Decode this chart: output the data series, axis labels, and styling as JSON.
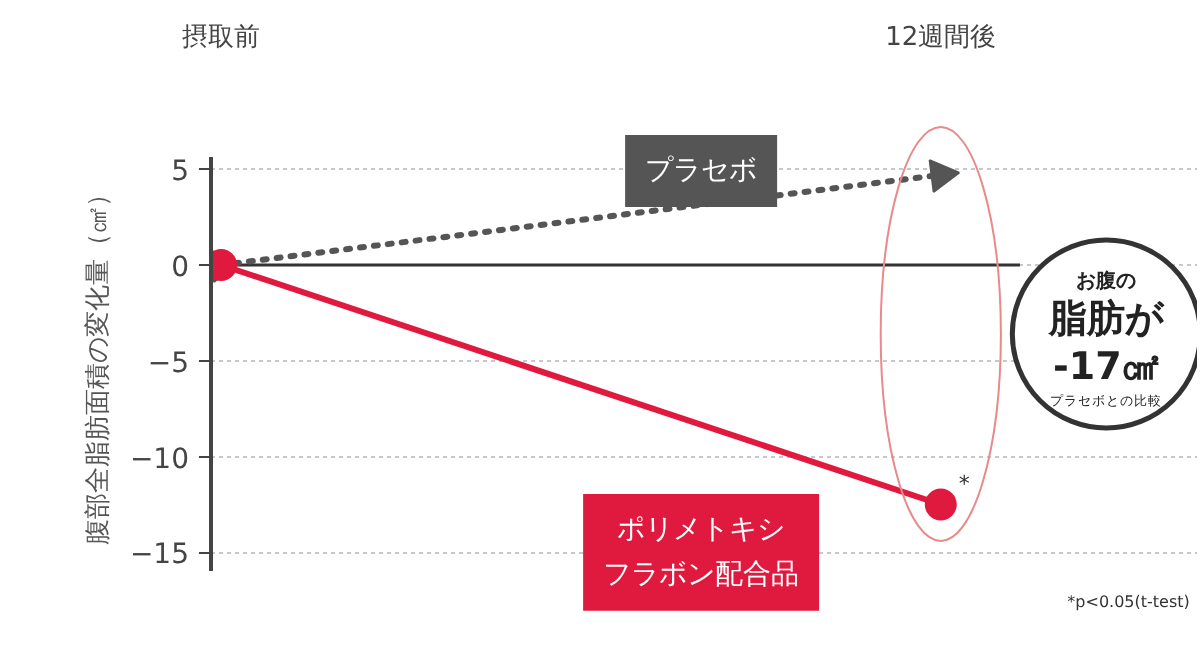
{
  "chart_data": {
    "type": "line",
    "categories": [
      "摂取前",
      "12週間後"
    ],
    "ylabel": "腹部全脂肪面積の変化量（㎠）",
    "ylim": [
      -16,
      5.6
    ],
    "yticks": [
      5,
      0,
      -5,
      -10,
      -15
    ],
    "grid": "y",
    "series": [
      {
        "name": "プラセボ",
        "color": "#555555",
        "values": [
          0,
          4.7
        ],
        "line_style": "dotted",
        "marker": "triangle"
      },
      {
        "name": "ポリメトキシフラボン配合品",
        "color": "#e0193f",
        "values": [
          0,
          -12.5
        ],
        "line_style": "solid",
        "marker": "circle"
      }
    ],
    "ref_lines": [
      {
        "axis": "y",
        "value": 0,
        "color": "#333333",
        "line_style": "solid"
      }
    ],
    "annotations": [
      "お腹の",
      "脂肪が",
      "-17㎠",
      "プラセボとの比較",
      {
        "text": "*",
        "x": "12週間後",
        "y": -12.5
      },
      "*p<0.05(t-test)"
    ],
    "legend": false
  }
}
